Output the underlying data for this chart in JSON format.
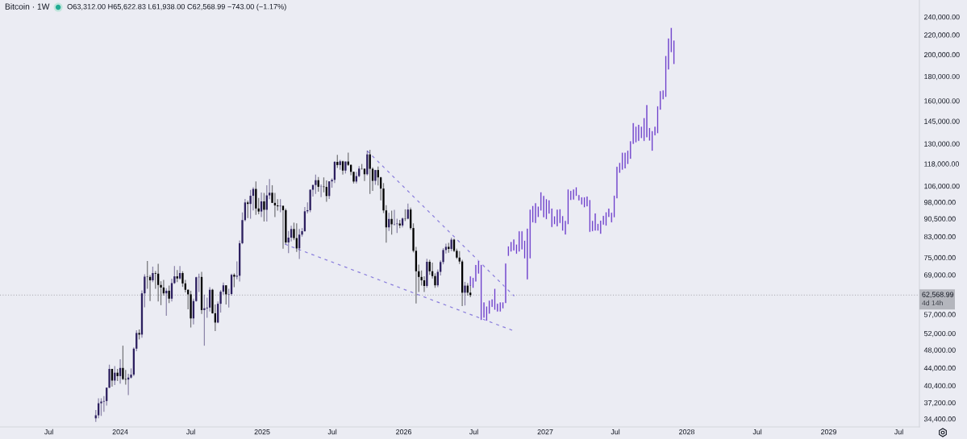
{
  "chart_data": {
    "type": "candlestick",
    "title": "Bitcoin · 1W",
    "subtitle": "O63,312.00 H65,622.83 L61,938.00 C62,568.99 −743.00 (−1.17%)",
    "annotations": [
      "4d 14h"
    ],
    "series": [
      {
        "x": [
          "2023-10-30",
          "2023-11-06",
          "2023-11-13",
          "2023-11-20",
          "2023-11-27",
          "2023-12-04",
          "2023-12-11",
          "2023-12-18",
          "2023-12-25",
          "2024-01-01",
          "2024-01-08",
          "2024-01-15",
          "2024-01-22",
          "2024-01-29",
          "2024-02-05",
          "2024-02-12",
          "2024-02-19",
          "2024-02-26",
          "2024-03-04",
          "2024-03-11",
          "2024-03-18",
          "2024-03-25",
          "2024-04-01",
          "2024-04-08",
          "2024-04-15",
          "2024-04-22",
          "2024-04-29",
          "2024-05-06",
          "2024-05-13",
          "2024-05-20",
          "2024-05-27",
          "2024-06-03",
          "2024-06-10",
          "2024-06-17",
          "2024-06-24",
          "2024-07-01",
          "2024-07-08",
          "2024-07-15",
          "2024-07-22",
          "2024-07-29",
          "2024-08-05",
          "2024-08-12",
          "2024-08-19",
          "2024-08-26",
          "2024-09-02",
          "2024-09-09",
          "2024-09-16",
          "2024-09-23",
          "2024-09-30",
          "2024-10-07",
          "2024-10-14",
          "2024-10-21",
          "2024-10-28",
          "2024-11-04",
          "2024-11-11",
          "2024-11-18",
          "2024-11-25",
          "2024-12-02",
          "2024-12-09",
          "2024-12-16",
          "2024-12-23",
          "2024-12-30",
          "2025-01-06",
          "2025-01-13",
          "2025-01-20",
          "2025-01-27",
          "2025-02-03",
          "2025-02-10",
          "2025-02-17",
          "2025-02-24",
          "2025-03-03",
          "2025-03-10",
          "2025-03-17",
          "2025-03-24",
          "2025-03-31",
          "2025-04-07",
          "2025-04-14",
          "2025-04-21",
          "2025-04-28",
          "2025-05-05",
          "2025-05-12",
          "2025-05-19",
          "2025-05-26",
          "2025-06-02",
          "2025-06-09",
          "2025-06-16",
          "2025-06-23",
          "2025-06-30",
          "2025-07-07",
          "2025-07-14",
          "2025-07-21",
          "2025-07-28",
          "2025-08-04",
          "2025-08-11",
          "2025-08-18",
          "2025-08-25",
          "2025-09-01",
          "2025-09-08",
          "2025-09-15",
          "2025-09-22",
          "2025-09-29",
          "2025-10-06",
          "2025-10-13",
          "2025-10-20",
          "2025-10-27",
          "2025-11-03",
          "2025-11-10",
          "2025-11-17",
          "2025-11-24",
          "2025-12-01",
          "2025-12-08",
          "2025-12-15",
          "2025-12-22",
          "2025-12-29",
          "2026-01-05",
          "2026-01-12",
          "2026-01-19",
          "2026-01-26",
          "2026-02-02",
          "2026-02-09",
          "2026-02-16",
          "2026-02-23",
          "2026-03-02",
          "2026-03-09",
          "2026-03-16",
          "2026-03-23",
          "2026-03-30",
          "2026-04-06",
          "2026-04-13",
          "2026-04-20",
          "2026-04-27",
          "2026-05-04",
          "2026-05-11",
          "2026-05-18",
          "2026-05-25",
          "2026-06-01",
          "2026-06-08",
          "2026-06-15",
          "2026-06-22"
        ],
        "ohlc": [
          [
            34500,
            35900,
            33900,
            35000
          ],
          [
            35000,
            38000,
            34500,
            37100
          ],
          [
            37100,
            38000,
            34900,
            37400
          ],
          [
            37400,
            38400,
            35600,
            37500
          ],
          [
            37500,
            40000,
            36700,
            40000
          ],
          [
            40000,
            44700,
            39900,
            43800
          ],
          [
            43800,
            43800,
            40200,
            41400
          ],
          [
            41400,
            44400,
            40500,
            43000
          ],
          [
            43000,
            43800,
            41300,
            42300
          ],
          [
            42300,
            45900,
            40800,
            44000
          ],
          [
            44000,
            49000,
            41500,
            41700
          ],
          [
            41700,
            43600,
            40600,
            41600
          ],
          [
            41600,
            42800,
            38600,
            42000
          ],
          [
            42000,
            43900,
            41800,
            42600
          ],
          [
            42600,
            48600,
            42300,
            48300
          ],
          [
            48300,
            52800,
            47700,
            52100
          ],
          [
            52100,
            53000,
            50500,
            51700
          ],
          [
            51700,
            64000,
            50900,
            63100
          ],
          [
            63100,
            69200,
            59000,
            68400
          ],
          [
            68400,
            73800,
            64500,
            68300
          ],
          [
            68300,
            68900,
            60800,
            67200
          ],
          [
            67200,
            71800,
            66600,
            69600
          ],
          [
            69600,
            70300,
            64500,
            69400
          ],
          [
            69400,
            72800,
            60700,
            65700
          ],
          [
            65700,
            66900,
            59600,
            64900
          ],
          [
            64900,
            67300,
            62400,
            63100
          ],
          [
            63100,
            64700,
            56600,
            63900
          ],
          [
            63900,
            65500,
            60200,
            61500
          ],
          [
            61500,
            67700,
            60700,
            66300
          ],
          [
            66300,
            72000,
            66000,
            68500
          ],
          [
            68500,
            70600,
            66600,
            67800
          ],
          [
            67800,
            72000,
            67400,
            69600
          ],
          [
            69600,
            70200,
            65100,
            66200
          ],
          [
            66200,
            67300,
            63400,
            64200
          ],
          [
            64200,
            64300,
            58400,
            62800
          ],
          [
            62800,
            63900,
            53500,
            55900
          ],
          [
            55900,
            61500,
            54300,
            60800
          ],
          [
            60800,
            68400,
            60600,
            68200
          ],
          [
            68200,
            69400,
            63500,
            68300
          ],
          [
            68300,
            70000,
            57100,
            58200
          ],
          [
            58200,
            62700,
            49000,
            58700
          ],
          [
            58700,
            61800,
            56100,
            58900
          ],
          [
            58900,
            65000,
            57800,
            64200
          ],
          [
            64200,
            64500,
            57200,
            57300
          ],
          [
            57300,
            59800,
            52600,
            54800
          ],
          [
            54800,
            60700,
            54600,
            60000
          ],
          [
            60000,
            64100,
            57500,
            63600
          ],
          [
            63600,
            66500,
            62700,
            65600
          ],
          [
            65600,
            65600,
            59800,
            62800
          ],
          [
            62800,
            64500,
            58900,
            62900
          ],
          [
            62900,
            69400,
            62400,
            69000
          ],
          [
            69000,
            69500,
            65000,
            68400
          ],
          [
            68400,
            73600,
            67500,
            68700
          ],
          [
            68700,
            81500,
            66800,
            80400
          ],
          [
            80400,
            93300,
            80000,
            89900
          ],
          [
            89900,
            99600,
            89400,
            97900
          ],
          [
            97900,
            98800,
            90800,
            97200
          ],
          [
            97200,
            104000,
            90500,
            101100
          ],
          [
            101100,
            105300,
            94200,
            104500
          ],
          [
            104500,
            108400,
            92200,
            95100
          ],
          [
            95100,
            100000,
            92500,
            93700
          ],
          [
            93700,
            102700,
            91200,
            98400
          ],
          [
            98400,
            102500,
            89300,
            94500
          ],
          [
            94500,
            106400,
            89300,
            101300
          ],
          [
            101300,
            109600,
            99500,
            102600
          ],
          [
            102600,
            106400,
            97600,
            97700
          ],
          [
            97700,
            102500,
            91200,
            96500
          ],
          [
            96500,
            99500,
            94100,
            96100
          ],
          [
            96100,
            99500,
            93400,
            96300
          ],
          [
            96300,
            96500,
            78300,
            94300
          ],
          [
            94300,
            95000,
            80000,
            80700
          ],
          [
            80700,
            85300,
            76600,
            82600
          ],
          [
            82600,
            87500,
            81100,
            86100
          ],
          [
            86100,
            88800,
            81600,
            82400
          ],
          [
            82400,
            88500,
            77100,
            78400
          ],
          [
            78400,
            86100,
            74500,
            83800
          ],
          [
            83800,
            86500,
            83000,
            85200
          ],
          [
            85200,
            95800,
            85000,
            93800
          ],
          [
            93800,
            97900,
            92800,
            94300
          ],
          [
            94300,
            104300,
            93400,
            104100
          ],
          [
            104100,
            106700,
            100700,
            106500
          ],
          [
            106500,
            112000,
            102000,
            109000
          ],
          [
            109000,
            110700,
            103100,
            105600
          ],
          [
            105600,
            106800,
            100400,
            105700
          ],
          [
            105700,
            110500,
            102800,
            105500
          ],
          [
            105500,
            108900,
            98200,
            101000
          ],
          [
            101000,
            108500,
            99600,
            108400
          ],
          [
            108400,
            110000,
            105100,
            109200
          ],
          [
            109200,
            119500,
            107500,
            119100
          ],
          [
            119100,
            123200,
            115700,
            117300
          ],
          [
            117300,
            120200,
            114700,
            119400
          ],
          [
            119400,
            119800,
            112000,
            114200
          ],
          [
            114200,
            119300,
            112600,
            119300
          ],
          [
            119300,
            124500,
            116800,
            117400
          ],
          [
            117400,
            117600,
            111700,
            113500
          ],
          [
            113500,
            113600,
            107300,
            108300
          ],
          [
            108300,
            113400,
            107300,
            111200
          ],
          [
            111200,
            116700,
            110600,
            115300
          ],
          [
            115300,
            117900,
            114700,
            115200
          ],
          [
            115200,
            115400,
            108600,
            112200
          ],
          [
            112200,
            125700,
            111600,
            123500
          ],
          [
            123500,
            126200,
            102000,
            115200
          ],
          [
            115200,
            116000,
            103500,
            108700
          ],
          [
            108700,
            114600,
            106600,
            114500
          ],
          [
            114500,
            116400,
            106300,
            110500
          ],
          [
            110500,
            110800,
            98900,
            104700
          ],
          [
            104700,
            107500,
            93000,
            94200
          ],
          [
            94200,
            96600,
            80600,
            86800
          ],
          [
            86800,
            93100,
            85300,
            90400
          ],
          [
            90400,
            94100,
            83800,
            88100
          ],
          [
            88100,
            94500,
            87600,
            88200
          ],
          [
            88200,
            90500,
            84500,
            88400
          ],
          [
            88400,
            90000,
            86500,
            87600
          ],
          [
            87600,
            91000,
            86800,
            90600
          ],
          [
            90600,
            94700,
            89500,
            90500
          ],
          [
            90500,
            97400,
            90200,
            94600
          ],
          [
            94600,
            95500,
            85800,
            86500
          ],
          [
            86500,
            88500,
            76900,
            77500
          ],
          [
            77500,
            79000,
            60100,
            70200
          ],
          [
            70200,
            72500,
            63500,
            68300
          ],
          [
            68300,
            70500,
            65500,
            67200
          ],
          [
            67200,
            68500,
            63500,
            65400
          ],
          [
            65400,
            74600,
            64800,
            73500
          ],
          [
            73500,
            74200,
            69000,
            70200
          ],
          [
            70200,
            73200,
            67800,
            68600
          ],
          [
            68600,
            69500,
            64800,
            65600
          ],
          [
            65600,
            70800,
            65000,
            70000
          ],
          [
            70000,
            74000,
            68800,
            73400
          ],
          [
            73400,
            78500,
            72600,
            77800
          ],
          [
            77800,
            80200,
            76500,
            79000
          ],
          [
            79000,
            80500,
            76800,
            78200
          ],
          [
            78200,
            82600,
            77400,
            81800
          ],
          [
            81800,
            82200,
            77000,
            77500
          ],
          [
            77500,
            78300,
            74500,
            75000
          ],
          [
            75000,
            77400,
            72700,
            73600
          ],
          [
            73600,
            74200,
            59300,
            63300
          ],
          [
            63300,
            66700,
            59500,
            65500
          ],
          [
            65500,
            66300,
            62400,
            63312
          ],
          [
            63312,
            65622.83,
            61938,
            62568.99
          ]
        ],
        "colors": [
          "#2d2060",
          "#2d2060",
          "#2d2060",
          "#2d2060",
          "#2d2060",
          "#2d2060",
          "#000000",
          "#2d2060",
          "#000000",
          "#2d2060",
          "#000000",
          "#000000",
          "#2d2060",
          "#2d2060",
          "#2d2060",
          "#2d2060",
          "#000000",
          "#2d2060",
          "#2d2060",
          "#000000",
          "#000000",
          "#2d2060",
          "#000000",
          "#000000",
          "#000000",
          "#000000",
          "#2d2060",
          "#000000",
          "#2d2060",
          "#2d2060",
          "#000000",
          "#2d2060",
          "#000000",
          "#000000",
          "#000000",
          "#000000",
          "#2d2060",
          "#2d2060",
          "#2d2060",
          "#000000",
          "#2d2060",
          "#2d2060",
          "#2d2060",
          "#000000",
          "#000000",
          "#2d2060",
          "#2d2060",
          "#2d2060",
          "#000000",
          "#2d2060",
          "#2d2060",
          "#000000",
          "#2d2060",
          "#2d2060",
          "#2d2060",
          "#2d2060",
          "#000000",
          "#2d2060",
          "#2d2060",
          "#000000",
          "#000000",
          "#2d2060",
          "#000000",
          "#2d2060",
          "#2d2060",
          "#000000",
          "#000000",
          "#000000",
          "#2d2060",
          "#000000",
          "#000000",
          "#2d2060",
          "#2d2060",
          "#000000",
          "#000000",
          "#2d2060",
          "#2d2060",
          "#2d2060",
          "#2d2060",
          "#2d2060",
          "#2d2060",
          "#2d2060",
          "#000000",
          "#2d2060",
          "#000000",
          "#000000",
          "#2d2060",
          "#2d2060",
          "#2d2060",
          "#000000",
          "#2d2060",
          "#000000",
          "#2d2060",
          "#000000",
          "#000000",
          "#000000",
          "#2d2060",
          "#2d2060",
          "#000000",
          "#000000",
          "#2d2060",
          "#000000",
          "#000000",
          "#2d2060",
          "#000000",
          "#000000",
          "#000000",
          "#000000",
          "#2d2060",
          "#000000",
          "#2d2060",
          "#2d2060",
          "#000000",
          "#2d2060",
          "#000000",
          "#2d2060",
          "#000000",
          "#000000",
          "#000000",
          "#000000",
          "#000000",
          "#000000",
          "#2d2060",
          "#000000",
          "#000000",
          "#000000",
          "#2d2060",
          "#2d2060",
          "#2d2060",
          "#2d2060",
          "#000000",
          "#2d2060",
          "#000000",
          "#000000",
          "#000000",
          "#000000",
          "#2d2060",
          "#000000",
          "#000000"
        ]
      },
      {
        "type": "bar",
        "color": "#6a3fc8",
        "x": [
          "2026-06-22",
          "2026-06-29",
          "2026-07-06",
          "2026-07-13",
          "2026-07-20",
          "2026-07-27",
          "2026-08-03",
          "2026-08-10",
          "2026-08-17",
          "2026-08-24",
          "2026-08-31",
          "2026-09-07",
          "2026-09-14",
          "2026-09-21",
          "2026-09-28",
          "2026-10-05",
          "2026-10-12",
          "2026-10-19",
          "2026-10-26",
          "2026-11-02",
          "2026-11-09",
          "2026-11-16",
          "2026-11-23",
          "2026-11-30",
          "2026-12-07",
          "2026-12-14",
          "2026-12-21",
          "2026-12-28",
          "2027-01-04",
          "2027-01-11",
          "2027-01-18",
          "2027-01-25",
          "2027-02-01",
          "2027-02-08",
          "2027-02-15",
          "2027-02-22",
          "2027-03-01",
          "2027-03-08",
          "2027-03-15",
          "2027-03-22",
          "2027-03-29",
          "2027-04-05",
          "2027-04-12",
          "2027-04-19",
          "2027-04-26",
          "2027-05-03",
          "2027-05-10",
          "2027-05-17",
          "2027-05-24",
          "2027-05-31",
          "2027-06-07",
          "2027-06-14",
          "2027-06-21",
          "2027-06-28",
          "2027-07-05",
          "2027-07-12",
          "2027-07-19",
          "2027-07-26",
          "2027-08-02",
          "2027-08-09",
          "2027-08-16",
          "2027-08-23",
          "2027-08-30",
          "2027-09-06",
          "2027-09-13",
          "2027-09-20",
          "2027-09-27",
          "2027-10-04",
          "2027-10-11",
          "2027-10-18",
          "2027-10-25",
          "2027-11-01",
          "2027-11-08",
          "2027-11-15",
          "2027-11-22",
          "2027-11-29"
        ],
        "base": [
          65400,
          64700,
          66700,
          69300,
          55400,
          56000,
          55200,
          57100,
          59000,
          58200,
          57700,
          57700,
          58600,
          60100,
          75500,
          77100,
          77500,
          76300,
          77100,
          77900,
          74600,
          67400,
          74600,
          88800,
          88500,
          91100,
          94000,
          91000,
          90200,
          92600,
          86800,
          88000,
          87100,
          88500,
          85300,
          83700,
          88000,
          98900,
          99100,
          100900,
          98700,
          96800,
          95500,
          95900,
          84800,
          85100,
          85300,
          85300,
          84000,
          87800,
          87400,
          91100,
          88800,
          91000,
          99700,
          112800,
          114500,
          115200,
          117700,
          120700,
          129700,
          130700,
          131600,
          133400,
          131600,
          133900,
          131800,
          125500,
          135200,
          136600,
          153000,
          160900,
          162800,
          185800,
          202100,
          190800
        ],
        "values": [
          3200,
          3400,
          5800,
          4700,
          17100,
          4500,
          4100,
          3900,
          2400,
          6400,
          2400,
          2800,
          1900,
          12900,
          3800,
          3900,
          4500,
          3700,
          8200,
          7400,
          6900,
          19000,
          20100,
          7600,
          9200,
          5000,
          9000,
          10200,
          9400,
          6500,
          8400,
          3700,
          7600,
          6400,
          6500,
          6000,
          16400,
          4800,
          5300,
          4600,
          2900,
          3700,
          5000,
          5000,
          14400,
          4600,
          7700,
          3100,
          5800,
          4100,
          6100,
          4100,
          4500,
          10300,
          16800,
          5900,
          10200,
          9500,
          8200,
          11100,
          14200,
          10700,
          11100,
          8000,
          15800,
          23100,
          8700,
          12900,
          6200,
          19400,
          14900,
          7600,
          36200,
          30800,
          25800,
          23600
        ]
      },
      {
        "type": "line",
        "color": "#8b7fdc",
        "line_style": "dashed",
        "x": [
          "2025-09-29",
          "2026-10-13"
        ],
        "values": [
          125600,
          62290
        ]
      },
      {
        "type": "line",
        "color": "#8b7fdc",
        "line_style": "dashed",
        "x": [
          "2025-03-01",
          "2026-10-13"
        ],
        "values": [
          80000,
          52590
        ]
      }
    ],
    "xlim": [
      "2023-02-25",
      "2029-08-23"
    ],
    "ylim": [
      33090,
      260400
    ],
    "log": true,
    "xticks": [
      {
        "value": "2023-07-01",
        "label": "Jul"
      },
      {
        "value": "2024-01-01",
        "label": "2024"
      },
      {
        "value": "2024-07-01",
        "label": "Jul"
      },
      {
        "value": "2025-01-01",
        "label": "2025"
      },
      {
        "value": "2025-07-01",
        "label": "Jul"
      },
      {
        "value": "2026-01-01",
        "label": "2026"
      },
      {
        "value": "2026-07-01",
        "label": "Jul"
      },
      {
        "value": "2027-01-01",
        "label": "2027"
      },
      {
        "value": "2027-07-01",
        "label": "Jul"
      },
      {
        "value": "2028-01-01",
        "label": "2028"
      },
      {
        "value": "2028-07-01",
        "label": "Jul"
      },
      {
        "value": "2029-01-01",
        "label": "2029"
      },
      {
        "value": "2029-07-01",
        "label": "Jul"
      }
    ],
    "yticks": [
      {
        "value": 34400,
        "label": "34,400.00"
      },
      {
        "value": 37200,
        "label": "37,200.00"
      },
      {
        "value": 40400,
        "label": "40,400.00"
      },
      {
        "value": 44000,
        "label": "44,000.00"
      },
      {
        "value": 48000,
        "label": "48,000.00"
      },
      {
        "value": 52000,
        "label": "52,000.00"
      },
      {
        "value": 57000,
        "label": "57,000.00"
      },
      {
        "value": 69000,
        "label": "69,000.00"
      },
      {
        "value": 75000,
        "label": "75,000.00"
      },
      {
        "value": 83000,
        "label": "83,000.00"
      },
      {
        "value": 90500,
        "label": "90,500.00"
      },
      {
        "value": 98000,
        "label": "98,000.00"
      },
      {
        "value": 106000,
        "label": "106,000.00"
      },
      {
        "value": 118000,
        "label": "118,000.00"
      },
      {
        "value": 130000,
        "label": "130,000.00"
      },
      {
        "value": 145000,
        "label": "145,000.00"
      },
      {
        "value": 160000,
        "label": "160,000.00"
      },
      {
        "value": 180000,
        "label": "180,000.00"
      },
      {
        "value": 200000,
        "label": "200,000.00"
      },
      {
        "value": 220000,
        "label": "220,000.00"
      },
      {
        "value": 240000,
        "label": "240,000.00"
      }
    ],
    "ref_lines": [
      {
        "axis": "y",
        "value": 62568.99,
        "label": "62,568.99",
        "color": "#b4b6bd",
        "line_style": "dotted"
      }
    ]
  }
}
